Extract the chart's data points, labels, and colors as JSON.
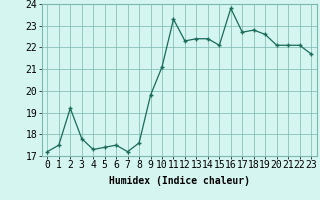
{
  "x": [
    0,
    1,
    2,
    3,
    4,
    5,
    6,
    7,
    8,
    9,
    10,
    11,
    12,
    13,
    14,
    15,
    16,
    17,
    18,
    19,
    20,
    21,
    22,
    23
  ],
  "y": [
    17.2,
    17.5,
    19.2,
    17.8,
    17.3,
    17.4,
    17.5,
    17.2,
    17.6,
    19.8,
    21.1,
    23.3,
    22.3,
    22.4,
    22.4,
    22.1,
    23.8,
    22.7,
    22.8,
    22.6,
    22.1,
    22.1,
    22.1,
    21.7
  ],
  "xlabel": "Humidex (Indice chaleur)",
  "xlim": [
    -0.5,
    23.5
  ],
  "ylim": [
    17.0,
    24.0
  ],
  "yticks": [
    17,
    18,
    19,
    20,
    21,
    22,
    23,
    24
  ],
  "xticks": [
    0,
    1,
    2,
    3,
    4,
    5,
    6,
    7,
    8,
    9,
    10,
    11,
    12,
    13,
    14,
    15,
    16,
    17,
    18,
    19,
    20,
    21,
    22,
    23
  ],
  "line_color": "#1a6b5a",
  "marker": "+",
  "bg_color": "#d4f5f0",
  "grid_color": "#7ab8b0",
  "xlabel_fontsize": 7,
  "tick_fontsize": 7
}
